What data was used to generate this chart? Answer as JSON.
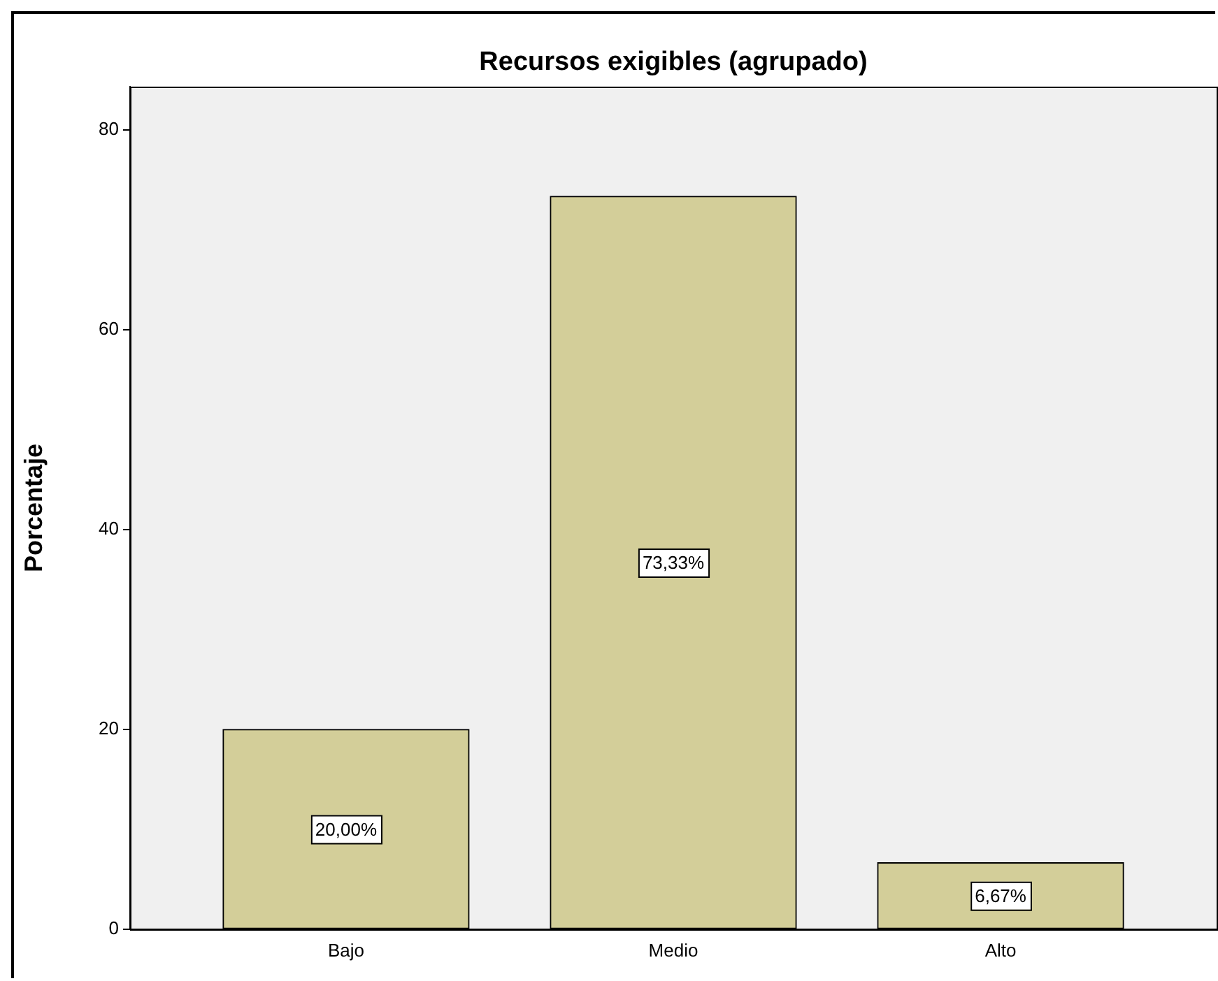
{
  "chart_data": {
    "type": "bar",
    "title": "Recursos exigibles (agrupado)",
    "ylabel": "Porcentaje",
    "categories": [
      "Bajo",
      "Medio",
      "Alto"
    ],
    "values": [
      20.0,
      73.33,
      6.67
    ],
    "value_labels": [
      "20,00%",
      "73,33%",
      "6,67%"
    ],
    "color": "#d3ce99",
    "ylim": [
      0,
      84.3
    ],
    "yticks": [
      0,
      20,
      40,
      60,
      80
    ],
    "grid": false,
    "legend": false
  }
}
